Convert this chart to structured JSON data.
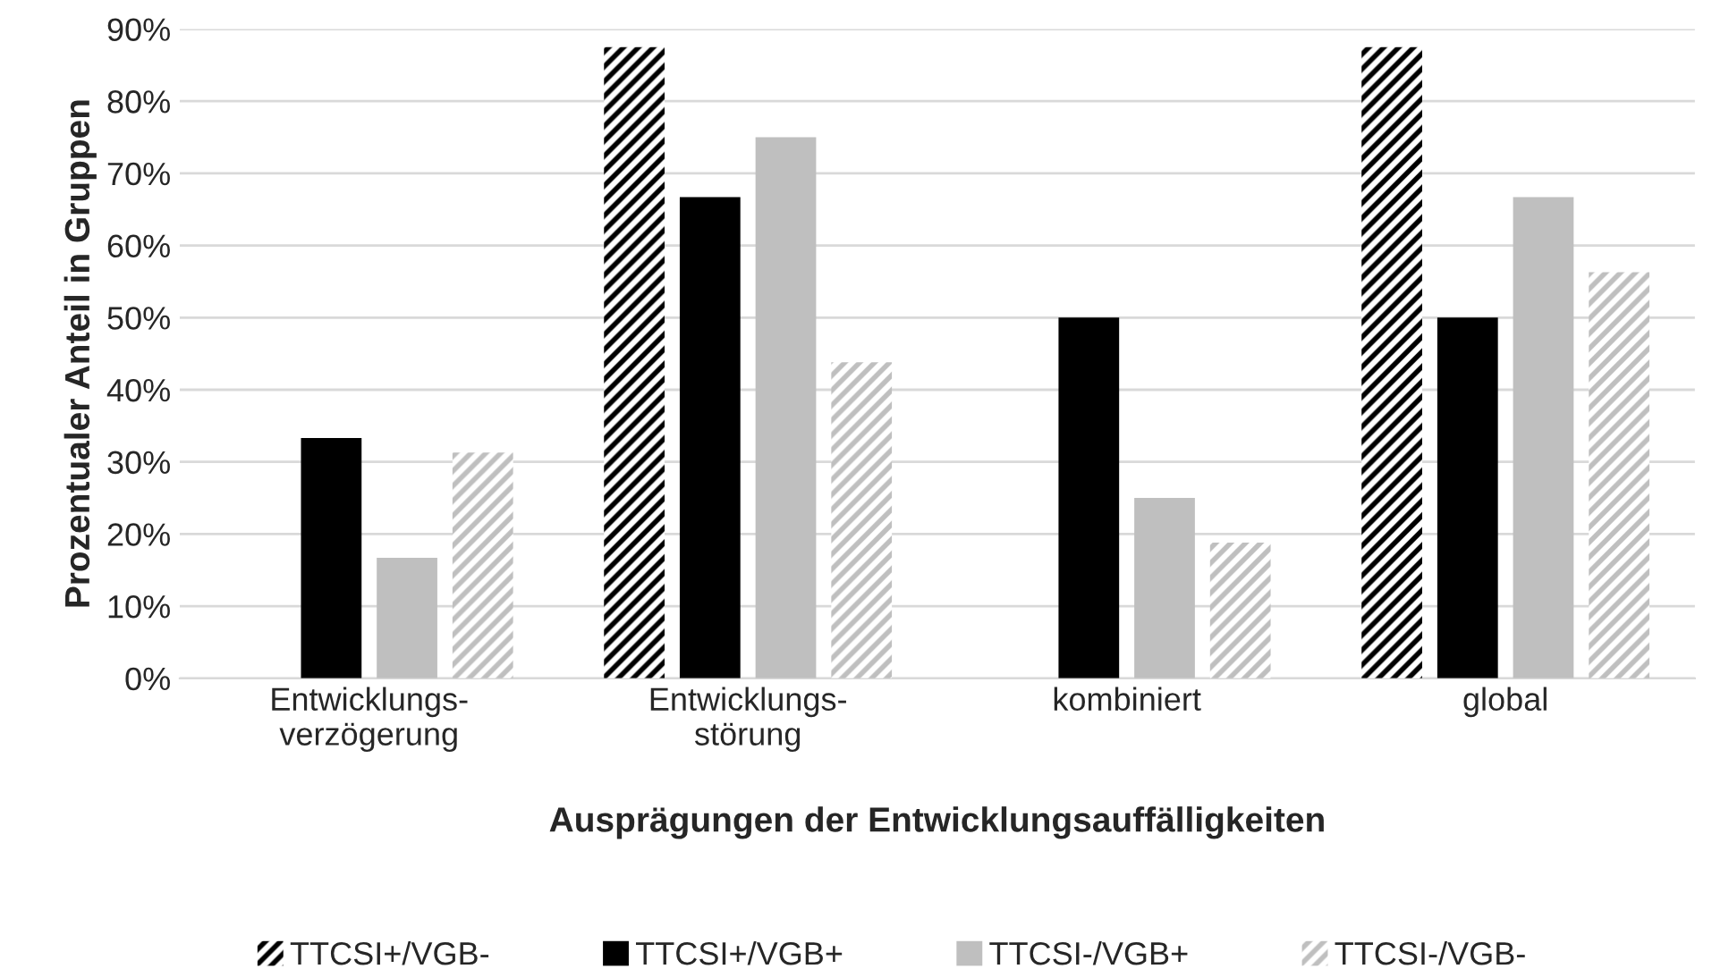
{
  "chart_data": {
    "type": "bar",
    "xlabel": "Ausprägungen der Entwicklungsauffälligkeiten",
    "ylabel": "Prozentualer Anteil in Gruppen",
    "categories": [
      "Entwicklungs-\nverzögerung",
      "Entwicklungs-\nstörung",
      "kombiniert",
      "global"
    ],
    "series": [
      {
        "name": "TTCSI+/VGB-",
        "color": "#000000",
        "values": [
          0,
          87.5,
          0,
          87.5
        ]
      },
      {
        "name": "TTCSI+/VGB+",
        "color": "#000000",
        "values": [
          33.3,
          66.7,
          50,
          50
        ]
      },
      {
        "name": "TTCSI-/VGB+",
        "color": "#bfbfbf",
        "values": [
          16.7,
          75,
          25,
          66.7
        ]
      },
      {
        "name": "TTCSI-/VGB-",
        "color": "#bfbfbf",
        "values": [
          31.3,
          43.8,
          18.8,
          56.3
        ]
      }
    ],
    "ylim": [
      0,
      90
    ],
    "yticks": [
      {
        "value": 0,
        "label": "0%"
      },
      {
        "value": 10,
        "label": "10%"
      },
      {
        "value": 20,
        "label": "20%"
      },
      {
        "value": 30,
        "label": "30%"
      },
      {
        "value": 40,
        "label": "40%"
      },
      {
        "value": 50,
        "label": "50%"
      },
      {
        "value": 60,
        "label": "60%"
      },
      {
        "value": 70,
        "label": "70%"
      },
      {
        "value": 80,
        "label": "80%"
      },
      {
        "value": 90,
        "label": "90%"
      }
    ],
    "grid": "y",
    "legend": "bottom"
  }
}
